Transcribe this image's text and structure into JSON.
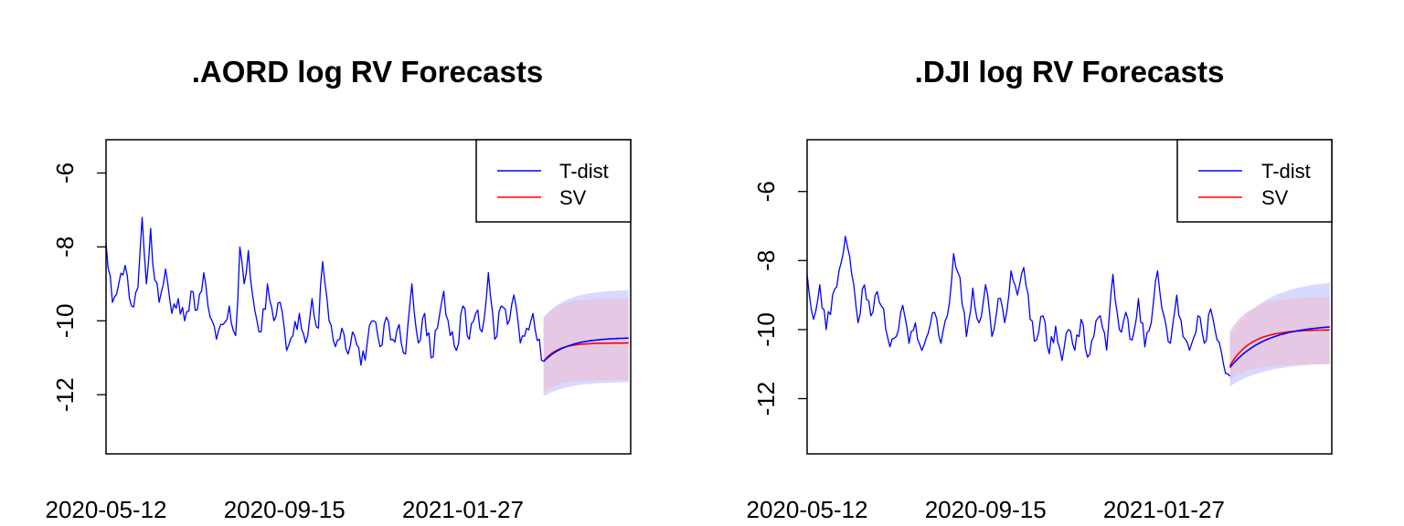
{
  "colors": {
    "t_dist": "#0000ff",
    "sv": "#ff0000",
    "t_dist_band": "#ccccff",
    "sv_band": "#e6c3dd",
    "axis": "#000000"
  },
  "chart_data": [
    {
      "type": "line",
      "title": ".AORD log RV Forecasts",
      "xlabel": "",
      "ylabel": "",
      "x_tick_labels": [
        "2020-05-12",
        "2020-09-15",
        "2021-01-27"
      ],
      "x_tick_index": [
        0,
        84,
        168
      ],
      "y_ticks": [
        -6,
        -8,
        -10,
        -12
      ],
      "ylim": [
        -13.6,
        -5.1
      ],
      "n_total": 248,
      "legend_position": "top-right",
      "legend": [
        "T-dist",
        "SV"
      ],
      "history": {
        "name": "",
        "keypoints": [
          [
            0,
            -7.9
          ],
          [
            3,
            -9.5
          ],
          [
            6,
            -9.0
          ],
          [
            9,
            -8.5
          ],
          [
            12,
            -9.6
          ],
          [
            15,
            -9.1
          ],
          [
            17,
            -7.2
          ],
          [
            19,
            -9.0
          ],
          [
            21,
            -7.5
          ],
          [
            23,
            -8.9
          ],
          [
            25,
            -9.5
          ],
          [
            28,
            -8.6
          ],
          [
            31,
            -9.8
          ],
          [
            34,
            -9.4
          ],
          [
            37,
            -10.0
          ],
          [
            40,
            -9.2
          ],
          [
            43,
            -9.7
          ],
          [
            46,
            -8.7
          ],
          [
            49,
            -9.9
          ],
          [
            52,
            -10.5
          ],
          [
            55,
            -10.1
          ],
          [
            58,
            -9.6
          ],
          [
            61,
            -10.4
          ],
          [
            63,
            -8.0
          ],
          [
            65,
            -9.0
          ],
          [
            67,
            -8.1
          ],
          [
            70,
            -9.7
          ],
          [
            73,
            -10.3
          ],
          [
            76,
            -9.0
          ],
          [
            79,
            -10.0
          ],
          [
            82,
            -9.5
          ],
          [
            85,
            -10.8
          ],
          [
            88,
            -10.4
          ],
          [
            91,
            -9.8
          ],
          [
            94,
            -10.6
          ],
          [
            97,
            -9.4
          ],
          [
            100,
            -10.2
          ],
          [
            102,
            -8.4
          ],
          [
            105,
            -10.0
          ],
          [
            108,
            -10.7
          ],
          [
            111,
            -10.2
          ],
          [
            114,
            -10.9
          ],
          [
            117,
            -10.4
          ],
          [
            120,
            -11.2
          ],
          [
            123,
            -10.6
          ],
          [
            126,
            -10.0
          ],
          [
            129,
            -10.7
          ],
          [
            132,
            -9.9
          ],
          [
            135,
            -10.5
          ],
          [
            138,
            -10.1
          ],
          [
            141,
            -10.9
          ],
          [
            144,
            -9.0
          ],
          [
            147,
            -10.6
          ],
          [
            150,
            -9.8
          ],
          [
            153,
            -11.0
          ],
          [
            156,
            -10.2
          ],
          [
            159,
            -9.2
          ],
          [
            162,
            -10.4
          ],
          [
            165,
            -10.8
          ],
          [
            168,
            -9.6
          ],
          [
            171,
            -10.5
          ],
          [
            174,
            -9.8
          ],
          [
            177,
            -10.3
          ],
          [
            180,
            -8.7
          ],
          [
            183,
            -10.5
          ],
          [
            186,
            -9.6
          ],
          [
            189,
            -10.1
          ],
          [
            192,
            -9.3
          ],
          [
            195,
            -10.6
          ],
          [
            198,
            -10.2
          ],
          [
            201,
            -9.8
          ],
          [
            204,
            -10.5
          ],
          [
            206,
            -11.1
          ]
        ],
        "noise": 0.28
      },
      "forecast_start": 206,
      "forecast_end": 246,
      "t_dist": {
        "start": -11.1,
        "end": -10.45,
        "rate": 0.09,
        "lower_start": -12.05,
        "lower_end": -11.65,
        "upper_start": -9.9,
        "upper_end": -9.15
      },
      "sv": {
        "start": -11.1,
        "end": -10.6,
        "rate": 0.15,
        "lower_start": -11.95,
        "lower_end": -11.6,
        "upper_start": -9.95,
        "upper_end": -9.4
      }
    },
    {
      "type": "line",
      "title": ".DJI log RV Forecasts",
      "xlabel": "",
      "ylabel": "",
      "x_tick_labels": [
        "2020-05-12",
        "2020-09-15",
        "2021-01-27"
      ],
      "x_tick_index": [
        0,
        84,
        168
      ],
      "y_ticks": [
        -6,
        -8,
        -10,
        -12
      ],
      "ylim": [
        -13.6,
        -4.5
      ],
      "n_total": 248,
      "legend_position": "top-right",
      "legend": [
        "T-dist",
        "SV"
      ],
      "history": {
        "name": "",
        "keypoints": [
          [
            0,
            -8.4
          ],
          [
            3,
            -9.7
          ],
          [
            6,
            -8.7
          ],
          [
            9,
            -10.0
          ],
          [
            12,
            -9.0
          ],
          [
            15,
            -8.3
          ],
          [
            18,
            -7.3
          ],
          [
            21,
            -8.4
          ],
          [
            24,
            -9.8
          ],
          [
            27,
            -8.7
          ],
          [
            30,
            -9.6
          ],
          [
            33,
            -8.9
          ],
          [
            36,
            -9.4
          ],
          [
            39,
            -10.5
          ],
          [
            42,
            -10.2
          ],
          [
            45,
            -9.3
          ],
          [
            48,
            -10.4
          ],
          [
            51,
            -9.8
          ],
          [
            54,
            -10.6
          ],
          [
            57,
            -10.1
          ],
          [
            60,
            -9.5
          ],
          [
            63,
            -10.4
          ],
          [
            66,
            -9.6
          ],
          [
            69,
            -7.8
          ],
          [
            72,
            -8.5
          ],
          [
            75,
            -10.2
          ],
          [
            78,
            -8.8
          ],
          [
            81,
            -9.8
          ],
          [
            84,
            -8.7
          ],
          [
            87,
            -10.2
          ],
          [
            90,
            -9.1
          ],
          [
            93,
            -9.8
          ],
          [
            96,
            -8.3
          ],
          [
            99,
            -9.0
          ],
          [
            102,
            -8.2
          ],
          [
            105,
            -9.7
          ],
          [
            108,
            -10.3
          ],
          [
            111,
            -9.6
          ],
          [
            114,
            -10.7
          ],
          [
            117,
            -9.9
          ],
          [
            120,
            -10.9
          ],
          [
            123,
            -10.0
          ],
          [
            126,
            -10.6
          ],
          [
            129,
            -9.7
          ],
          [
            132,
            -10.8
          ],
          [
            135,
            -10.2
          ],
          [
            138,
            -9.6
          ],
          [
            141,
            -10.6
          ],
          [
            144,
            -8.4
          ],
          [
            147,
            -10.0
          ],
          [
            150,
            -9.5
          ],
          [
            153,
            -10.3
          ],
          [
            156,
            -9.1
          ],
          [
            159,
            -10.5
          ],
          [
            162,
            -9.8
          ],
          [
            165,
            -8.3
          ],
          [
            168,
            -9.6
          ],
          [
            171,
            -10.4
          ],
          [
            174,
            -9.0
          ],
          [
            177,
            -10.2
          ],
          [
            180,
            -10.6
          ],
          [
            184,
            -9.6
          ],
          [
            187,
            -10.4
          ],
          [
            190,
            -9.4
          ],
          [
            193,
            -10.3
          ],
          [
            196,
            -11.0
          ],
          [
            199,
            -11.35
          ]
        ],
        "noise": 0.25
      },
      "forecast_start": 199,
      "forecast_end": 246,
      "t_dist": {
        "start": -11.1,
        "end": -9.85,
        "rate": 0.06,
        "lower_start": -11.65,
        "lower_end": -10.95,
        "upper_start": -10.2,
        "upper_end": -8.55
      },
      "sv": {
        "start": -11.05,
        "end": -10.0,
        "rate": 0.1,
        "lower_start": -11.45,
        "lower_end": -11.0,
        "upper_start": -10.05,
        "upper_end": -9.05
      }
    }
  ]
}
